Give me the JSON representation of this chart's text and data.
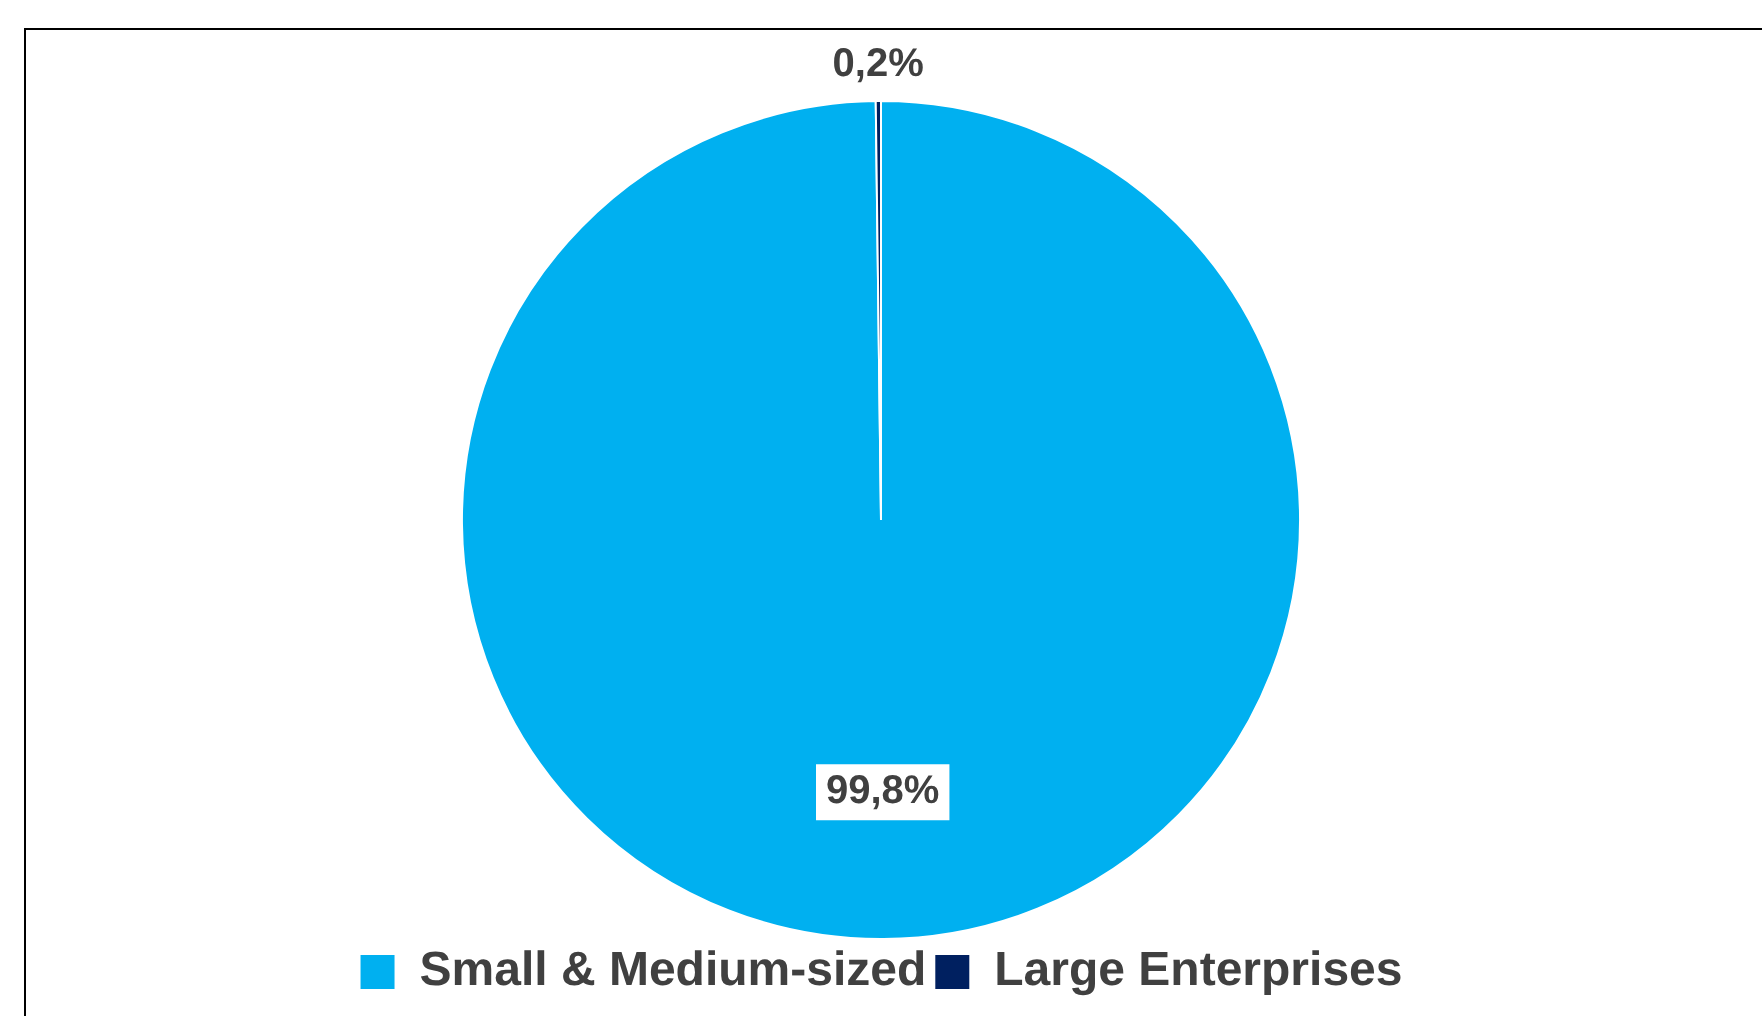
{
  "chart_data": {
    "type": "pie",
    "categories": [
      "Small & Medium-sized",
      "Large Enterprises"
    ],
    "values": [
      99.8,
      0.2
    ],
    "colors": [
      "#00b0f0",
      "#002060"
    ],
    "value_labels": [
      "99,8%",
      "0,2%"
    ],
    "legend": "bottom"
  }
}
